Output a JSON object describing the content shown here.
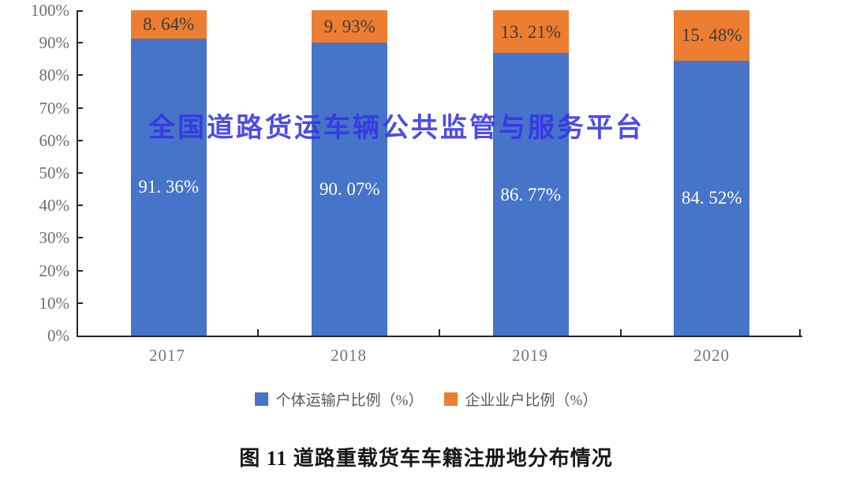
{
  "watermark": "全国道路货运车辆公共监管与服务平台",
  "caption": "图 11 道路重载货车车籍注册地分布情况",
  "colors": {
    "bar_blue": "#4574C8",
    "bar_orange": "#ED7D31",
    "watermark_blue": "#3434E6",
    "axis_line": "#262626",
    "tick_text": "#6e6e6e"
  },
  "chart_data": {
    "type": "bar",
    "stacked": true,
    "percent_stacked": true,
    "categories": [
      "2017",
      "2018",
      "2019",
      "2020"
    ],
    "series": [
      {
        "name": "个体运输户比例（%）",
        "color": "#4574C8",
        "values": [
          91.36,
          90.07,
          86.77,
          84.52
        ],
        "labels": [
          "91. 36%",
          "90. 07%",
          "86. 77%",
          "84. 52%"
        ]
      },
      {
        "name": "企业业户比例（%）",
        "color": "#ED7D31",
        "values": [
          8.64,
          9.93,
          13.21,
          15.48
        ],
        "labels": [
          "8. 64%",
          "9. 93%",
          "13. 21%",
          "15. 48%"
        ]
      }
    ],
    "title": "",
    "xlabel": "",
    "ylabel": "",
    "ylim": [
      0,
      100
    ],
    "y_ticks": [
      "0%",
      "10%",
      "20%",
      "30%",
      "40%",
      "50%",
      "60%",
      "70%",
      "80%",
      "90%",
      "100%"
    ],
    "grid": false,
    "legend_position": "bottom"
  }
}
